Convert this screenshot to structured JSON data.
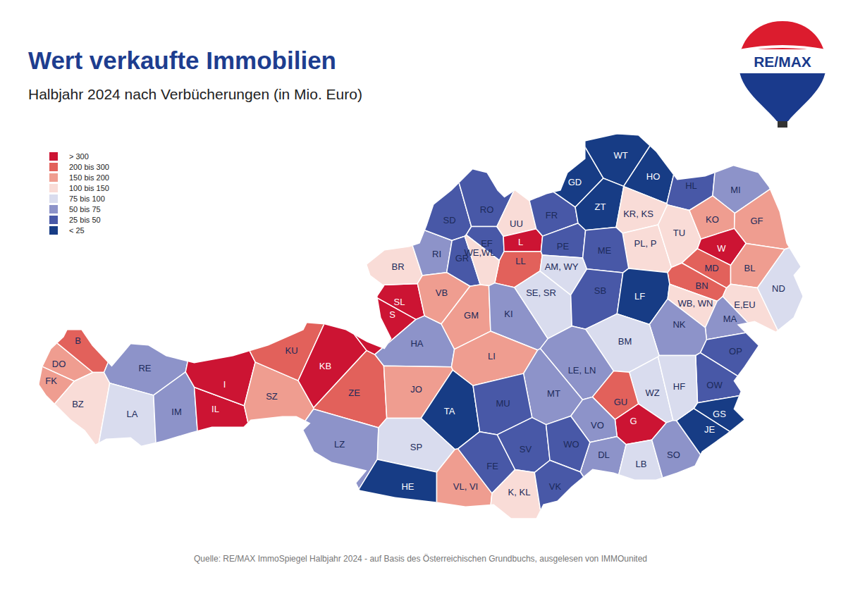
{
  "chart_data": {
    "type": "choropleth",
    "title": "Wert verkaufte Immobilien",
    "subtitle": "Halbjahr 2024 nach Verbücherungen (in Mio. Euro)",
    "source": "Quelle: RE/MAX ImmoSpiegel Halbjahr 2024 - auf Basis des Österreichischen Grundbuchs, ausgelesen von IMMOunited",
    "logo": "RE/MAX",
    "legend": "top-left",
    "classes": [
      {
        "label": "> 300",
        "color": "#cc1433"
      },
      {
        "label": "200 bis 300",
        "color": "#e2615b"
      },
      {
        "label": "150 bis 200",
        "color": "#ef9d90"
      },
      {
        "label": "100 bis 150",
        "color": "#f9dcd7"
      },
      {
        "label": "75 bis 100",
        "color": "#d9dcee"
      },
      {
        "label": "50 bis 75",
        "color": "#8d93c9"
      },
      {
        "label": "25 bis 50",
        "color": "#4858a7"
      },
      {
        "label": "< 25",
        "color": "#173c85"
      }
    ],
    "regions": [
      {
        "label": "DO",
        "class": "150 bis 200"
      },
      {
        "label": "B",
        "class": "200 bis 300"
      },
      {
        "label": "FK",
        "class": "150 bis 200"
      },
      {
        "label": "BZ",
        "class": "100 bis 150"
      },
      {
        "label": "RE",
        "class": "50 bis 75"
      },
      {
        "label": "LA",
        "class": "75 bis 100"
      },
      {
        "label": "IM",
        "class": "50 bis 75"
      },
      {
        "label": "IL",
        "class": "> 300"
      },
      {
        "label": "I",
        "class": "> 300"
      },
      {
        "label": "SZ",
        "class": "150 bis 200"
      },
      {
        "label": "KU",
        "class": "200 bis 300"
      },
      {
        "label": "KB",
        "class": "> 300"
      },
      {
        "label": "ZE",
        "class": "200 bis 300"
      },
      {
        "label": "LZ",
        "class": "50 bis 75"
      },
      {
        "label": "SL",
        "class": "> 300"
      },
      {
        "label": "S",
        "class": "> 300"
      },
      {
        "label": "HA",
        "class": "50 bis 75"
      },
      {
        "label": "JO",
        "class": "150 bis 200"
      },
      {
        "label": "TA",
        "class": "< 25"
      },
      {
        "label": "BR",
        "class": "100 bis 150"
      },
      {
        "label": "RI",
        "class": "50 bis 75"
      },
      {
        "label": "SD",
        "class": "25 bis 50"
      },
      {
        "label": "RO",
        "class": "25 bis 50"
      },
      {
        "label": "GR",
        "class": "25 bis 50"
      },
      {
        "label": "EF",
        "class": "25 bis 50"
      },
      {
        "label": "UU",
        "class": "100 bis 150"
      },
      {
        "label": "L",
        "class": "> 300"
      },
      {
        "label": "LL",
        "class": "200 bis 300"
      },
      {
        "label": "WE,WL",
        "class": "100 bis 150"
      },
      {
        "label": "FR",
        "class": "25 bis 50"
      },
      {
        "label": "PE",
        "class": "25 bis 50"
      },
      {
        "label": "VB",
        "class": "150 bis 200"
      },
      {
        "label": "GM",
        "class": "150 bis 200"
      },
      {
        "label": "KI",
        "class": "50 bis 75"
      },
      {
        "label": "SE, SR",
        "class": "75 bis 100"
      },
      {
        "label": "AM, WY",
        "class": "75 bis 100"
      },
      {
        "label": "LI",
        "class": "150 bis 200"
      },
      {
        "label": "GD",
        "class": "< 25"
      },
      {
        "label": "WT",
        "class": "< 25"
      },
      {
        "label": "ZT",
        "class": "< 25"
      },
      {
        "label": "HO",
        "class": "< 25"
      },
      {
        "label": "HL",
        "class": "25 bis 50"
      },
      {
        "label": "MI",
        "class": "50 bis 75"
      },
      {
        "label": "KR, KS",
        "class": "100 bis 150"
      },
      {
        "label": "PL, P",
        "class": "100 bis 150"
      },
      {
        "label": "TU",
        "class": "100 bis 150"
      },
      {
        "label": "KO",
        "class": "150 bis 200"
      },
      {
        "label": "GF",
        "class": "150 bis 200"
      },
      {
        "label": "W",
        "class": "> 300"
      },
      {
        "label": "MD",
        "class": "200 bis 300"
      },
      {
        "label": "BL",
        "class": "150 bis 200"
      },
      {
        "label": "BN",
        "class": "200 bis 300"
      },
      {
        "label": "ME",
        "class": "25 bis 50"
      },
      {
        "label": "SB",
        "class": "25 bis 50"
      },
      {
        "label": "LF",
        "class": "< 25"
      },
      {
        "label": "WB, WN",
        "class": "100 bis 150"
      },
      {
        "label": "E,EU",
        "class": "100 bis 150"
      },
      {
        "label": "ND",
        "class": "75 bis 100"
      },
      {
        "label": "MA",
        "class": "50 bis 75"
      },
      {
        "label": "NK",
        "class": "50 bis 75"
      },
      {
        "label": "OP",
        "class": "25 bis 50"
      },
      {
        "label": "OW",
        "class": "25 bis 50"
      },
      {
        "label": "GS",
        "class": "< 25"
      },
      {
        "label": "JE",
        "class": "< 25"
      },
      {
        "label": "BM",
        "class": "75 bis 100"
      },
      {
        "label": "LE, LN",
        "class": "50 bis 75"
      },
      {
        "label": "MT",
        "class": "50 bis 75"
      },
      {
        "label": "MU",
        "class": "25 bis 50"
      },
      {
        "label": "WZ",
        "class": "75 bis 100"
      },
      {
        "label": "HF",
        "class": "75 bis 100"
      },
      {
        "label": "GU",
        "class": "200 bis 300"
      },
      {
        "label": "G",
        "class": "> 300"
      },
      {
        "label": "VO",
        "class": "50 bis 75"
      },
      {
        "label": "DL",
        "class": "50 bis 75"
      },
      {
        "label": "LB",
        "class": "75 bis 100"
      },
      {
        "label": "SO",
        "class": "50 bis 75"
      },
      {
        "label": "SP",
        "class": "75 bis 100"
      },
      {
        "label": "HE",
        "class": "< 25"
      },
      {
        "label": "VL, VI",
        "class": "150 bis 200"
      },
      {
        "label": "FE",
        "class": "25 bis 50"
      },
      {
        "label": "SV",
        "class": "25 bis 50"
      },
      {
        "label": "WO",
        "class": "25 bis 50"
      },
      {
        "label": "K, KL",
        "class": "100 bis 150"
      },
      {
        "label": "VK",
        "class": "25 bis 50"
      }
    ]
  }
}
